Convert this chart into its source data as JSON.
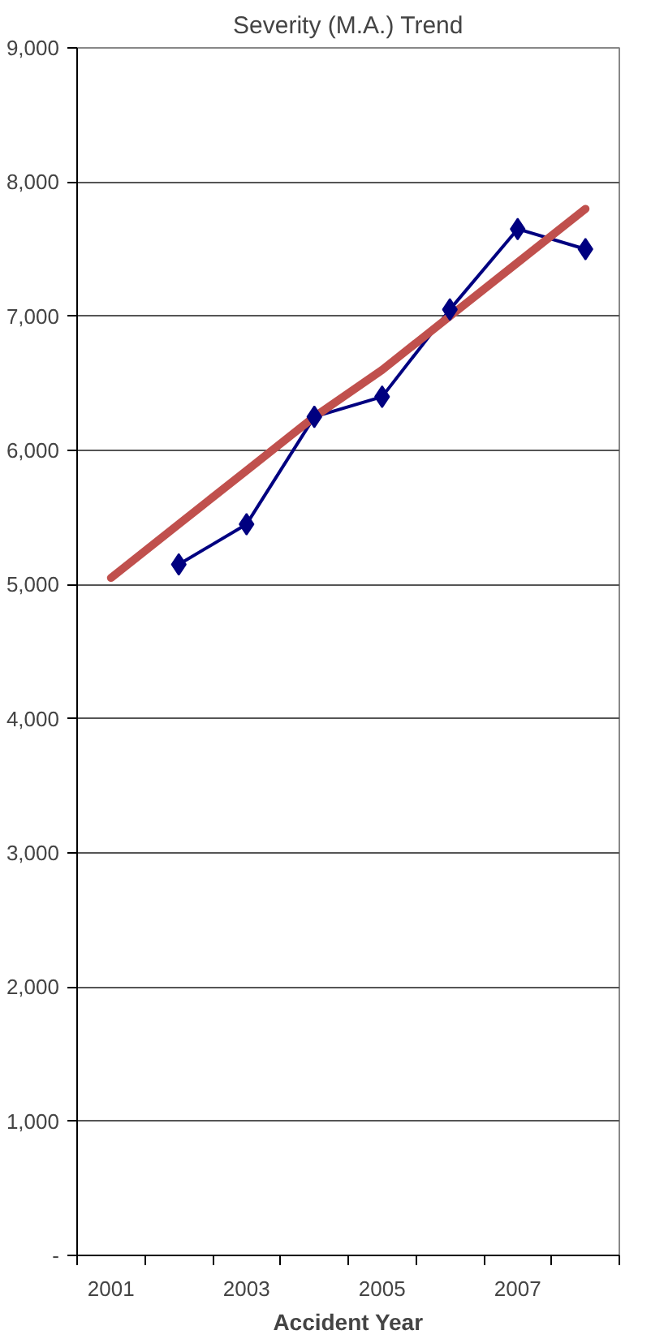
{
  "chart_data": {
    "type": "line",
    "title": "Severity (M.A.) Trend",
    "xlabel": "Accident Year",
    "categories": [
      "2001",
      null,
      "2003",
      null,
      "2005",
      null,
      "2007",
      null
    ],
    "series": [
      {
        "color": "#000080",
        "values": [
          null,
          5150,
          5450,
          6250,
          6400,
          7050,
          7650,
          7500
        ],
        "marker": "diamond"
      },
      {
        "color": "#c0504d",
        "values": [
          5050,
          5450,
          5850,
          6250,
          6600,
          7000,
          7400,
          7800
        ],
        "marker": "none"
      }
    ],
    "ylim": [
      0,
      9000
    ],
    "yticks": [
      {
        "value": 0,
        "label": "-"
      },
      {
        "value": 1000,
        "label": "1,000"
      },
      {
        "value": 2000,
        "label": "2,000"
      },
      {
        "value": 3000,
        "label": "3,000"
      },
      {
        "value": 4000,
        "label": "4,000"
      },
      {
        "value": 5000,
        "label": "5,000"
      },
      {
        "value": 6000,
        "label": "6,000"
      },
      {
        "value": 7000,
        "label": "7,000"
      },
      {
        "value": 8000,
        "label": "8,000"
      },
      {
        "value": 9000,
        "label": "9,000"
      }
    ],
    "grid": "y",
    "line_style": "solid"
  }
}
